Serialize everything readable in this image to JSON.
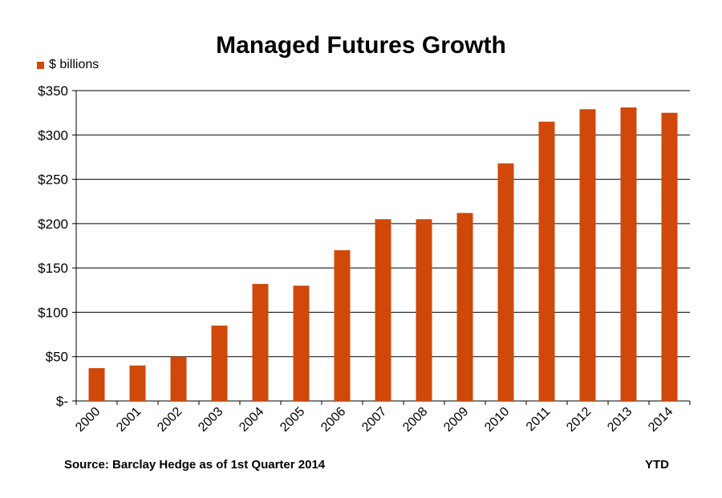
{
  "chart_data": {
    "type": "bar",
    "title": "Managed Futures Growth",
    "categories": [
      "2000",
      "2001",
      "2002",
      "2003",
      "2004",
      "2005",
      "2006",
      "2007",
      "2008",
      "2009",
      "2010",
      "2011",
      "2012",
      "2013",
      "2014"
    ],
    "series": [
      {
        "name": "$ billions",
        "values": [
          37,
          40,
          50,
          85,
          132,
          130,
          170,
          205,
          205,
          212,
          268,
          315,
          329,
          331,
          325
        ]
      }
    ],
    "ylim": [
      0,
      350
    ],
    "yticks": [
      {
        "value": 0,
        "label": "$-"
      },
      {
        "value": 50,
        "label": "$50"
      },
      {
        "value": 100,
        "label": "$100"
      },
      {
        "value": 150,
        "label": "$150"
      },
      {
        "value": 200,
        "label": "$200"
      },
      {
        "value": 250,
        "label": "$250"
      },
      {
        "value": 300,
        "label": "$300"
      },
      {
        "value": 350,
        "label": "$350"
      }
    ],
    "grid": true,
    "legend_position": "top-left",
    "bar_color": "#D0480A",
    "source": "Source: Barclay Hedge as of 1st Quarter 2014",
    "note": "YTD"
  }
}
